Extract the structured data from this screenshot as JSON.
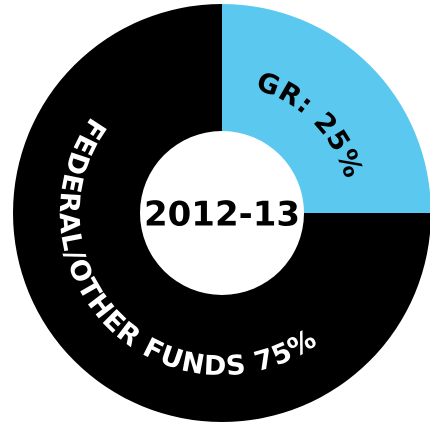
{
  "chart_data": {
    "type": "donut",
    "center_label": "2012-13",
    "values": [
      25,
      75
    ],
    "value_labels": [
      "GR: 25%",
      "FEDERAL/OTHER FUNDS 75%"
    ],
    "colors": [
      "#5bc8f0",
      "#000000"
    ]
  }
}
